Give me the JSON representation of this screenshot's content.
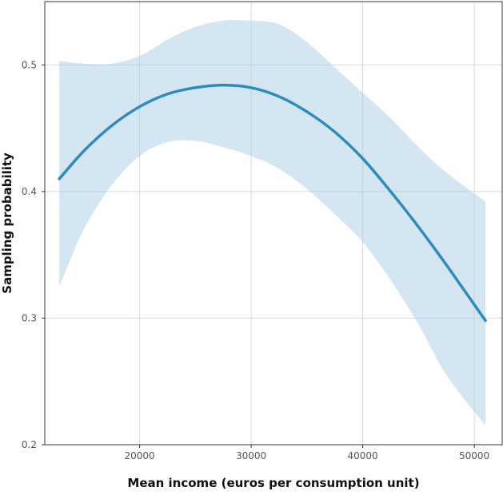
{
  "chart_data": {
    "type": "line",
    "title": "",
    "xlabel": "Mean income (euros per consumption unit)",
    "ylabel": "Sampling probability",
    "xlim": [
      11500,
      52500
    ],
    "ylim": [
      0.2,
      0.55
    ],
    "xticks": [
      20000,
      30000,
      40000,
      50000
    ],
    "yticks": [
      0.2,
      0.3,
      0.4,
      0.5
    ],
    "xtick_labels": [
      "20000",
      "30000",
      "40000",
      "50000"
    ],
    "ytick_labels": [
      "0.2",
      "0.3",
      "0.4",
      "0.5"
    ],
    "grid": true,
    "legend": "none",
    "series": [
      {
        "x": [
          12800,
          15000,
          17500,
          20000,
          22500,
          25000,
          27500,
          30000,
          32500,
          35000,
          37500,
          40000,
          42500,
          45000,
          47500,
          51000
        ],
        "y": [
          0.41,
          0.432,
          0.452,
          0.467,
          0.477,
          0.482,
          0.484,
          0.482,
          0.475,
          0.463,
          0.447,
          0.426,
          0.4,
          0.372,
          0.342,
          0.298
        ],
        "lower": [
          0.325,
          0.37,
          0.405,
          0.428,
          0.439,
          0.44,
          0.435,
          0.428,
          0.418,
          0.402,
          0.382,
          0.36,
          0.33,
          0.295,
          0.255,
          0.215
        ],
        "upper": [
          0.503,
          0.501,
          0.501,
          0.507,
          0.52,
          0.53,
          0.535,
          0.535,
          0.532,
          0.518,
          0.498,
          0.478,
          0.458,
          0.435,
          0.415,
          0.392
        ]
      }
    ]
  },
  "colors": {
    "line": "#2E8BC0",
    "band": "#A9CDE3",
    "grid": "#D3D8DE",
    "axis": "#333333"
  }
}
